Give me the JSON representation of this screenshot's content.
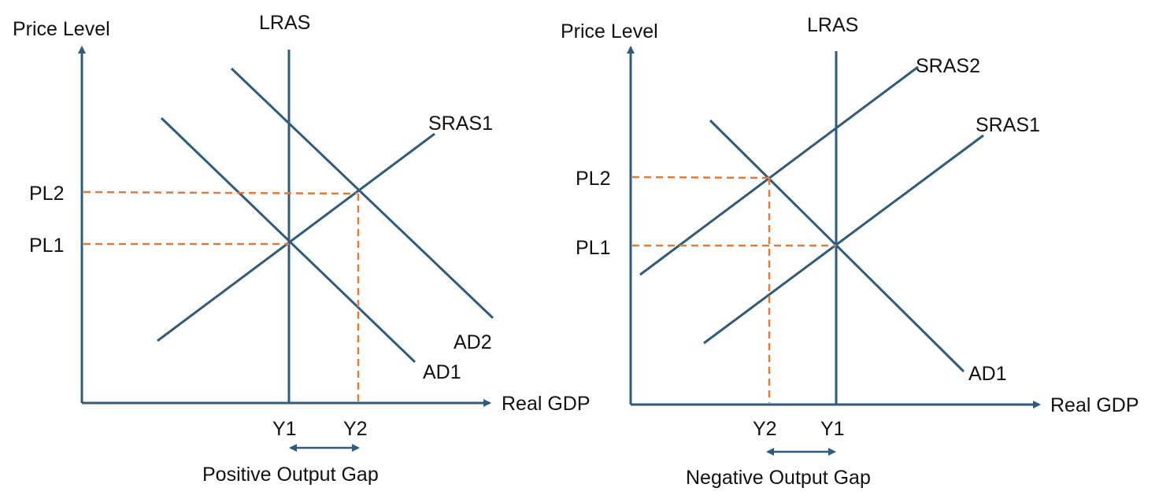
{
  "colors": {
    "curve": "#2f5b7c",
    "guide": "#e07b39",
    "text": "#111111",
    "background": "#ffffff"
  },
  "left_panel": {
    "y_axis_label": "Price Level",
    "x_axis_label": "Real GDP",
    "lras_label": "LRAS",
    "sras_label": "SRAS1",
    "ad1_label": "AD1",
    "ad2_label": "AD2",
    "pl_high_label": "PL2",
    "pl_low_label": "PL1",
    "y_left_label": "Y1",
    "y_right_label": "Y2",
    "gap_label": "Positive Output Gap"
  },
  "right_panel": {
    "y_axis_label": "Price Level",
    "x_axis_label": "Real GDP",
    "lras_label": "LRAS",
    "sras2_label": "SRAS2",
    "sras1_label": "SRAS1",
    "ad1_label": "AD1",
    "pl_high_label": "PL2",
    "pl_low_label": "PL1",
    "y_left_label": "Y2",
    "y_right_label": "Y1",
    "gap_label": "Negative Output Gap"
  }
}
